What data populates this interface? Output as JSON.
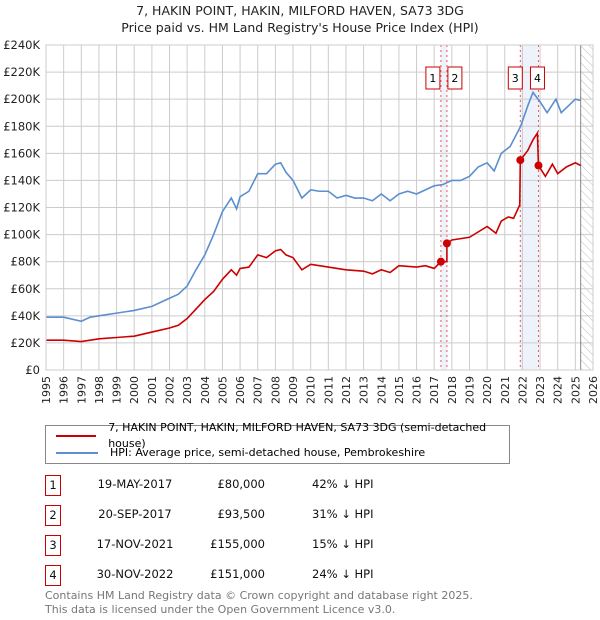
{
  "chart_data": {
    "type": "line",
    "title": "7, HAKIN POINT, HAKIN, MILFORD HAVEN, SA73 3DG",
    "subtitle": "Price paid vs. HM Land Registry's House Price Index (HPI)",
    "xlim": [
      1995,
      2026
    ],
    "ylim": [
      0,
      240000
    ],
    "x_ticks": [
      "1995",
      "1996",
      "1997",
      "1998",
      "1999",
      "2000",
      "2001",
      "2002",
      "2003",
      "2004",
      "2005",
      "2006",
      "2007",
      "2008",
      "2009",
      "2010",
      "2011",
      "2012",
      "2013",
      "2014",
      "2015",
      "2016",
      "2017",
      "2018",
      "2019",
      "2020",
      "2021",
      "2022",
      "2023",
      "2024",
      "2025",
      "2026"
    ],
    "y_ticks": [
      {
        "v": 0,
        "l": "£0"
      },
      {
        "v": 20000,
        "l": "£20K"
      },
      {
        "v": 40000,
        "l": "£40K"
      },
      {
        "v": 60000,
        "l": "£60K"
      },
      {
        "v": 80000,
        "l": "£80K"
      },
      {
        "v": 100000,
        "l": "£100K"
      },
      {
        "v": 120000,
        "l": "£120K"
      },
      {
        "v": 140000,
        "l": "£140K"
      },
      {
        "v": 160000,
        "l": "£160K"
      },
      {
        "v": 180000,
        "l": "£180K"
      },
      {
        "v": 200000,
        "l": "£200K"
      },
      {
        "v": 220000,
        "l": "£220K"
      },
      {
        "v": 240000,
        "l": "£240K"
      }
    ],
    "grid": true,
    "series": [
      {
        "name": "7, HAKIN POINT, HAKIN, MILFORD HAVEN, SA73 3DG (semi-detached house)",
        "color": "#cc0000",
        "points": [
          [
            1995,
            22
          ],
          [
            1996,
            22
          ],
          [
            1997,
            21
          ],
          [
            1998,
            23
          ],
          [
            1999,
            24
          ],
          [
            2000,
            25
          ],
          [
            2001,
            28
          ],
          [
            2002,
            31
          ],
          [
            2002.5,
            33
          ],
          [
            2003,
            38
          ],
          [
            2003.5,
            45
          ],
          [
            2004,
            52
          ],
          [
            2004.5,
            58
          ],
          [
            2005,
            67
          ],
          [
            2005.5,
            74
          ],
          [
            2005.8,
            70
          ],
          [
            2006,
            75
          ],
          [
            2006.5,
            76
          ],
          [
            2007,
            85
          ],
          [
            2007.5,
            83
          ],
          [
            2008,
            88
          ],
          [
            2008.3,
            89
          ],
          [
            2008.6,
            85
          ],
          [
            2009,
            83
          ],
          [
            2009.5,
            74
          ],
          [
            2010,
            78
          ],
          [
            2011,
            76
          ],
          [
            2012,
            74
          ],
          [
            2013,
            73
          ],
          [
            2013.5,
            71
          ],
          [
            2014,
            74
          ],
          [
            2014.5,
            72
          ],
          [
            2015,
            77
          ],
          [
            2016,
            76
          ],
          [
            2016.5,
            77
          ],
          [
            2017,
            75
          ],
          [
            2017.38,
            80
          ],
          [
            2017.72,
            80
          ],
          [
            2017.72,
            93.5
          ],
          [
            2018,
            96
          ],
          [
            2019,
            98
          ],
          [
            2019.5,
            102
          ],
          [
            2020,
            106
          ],
          [
            2020.5,
            101
          ],
          [
            2020.8,
            110
          ],
          [
            2021.2,
            113
          ],
          [
            2021.5,
            112
          ],
          [
            2021.85,
            122
          ],
          [
            2021.88,
            155
          ],
          [
            2022.3,
            162
          ],
          [
            2022.6,
            170
          ],
          [
            2022.85,
            175
          ],
          [
            2022.91,
            151
          ],
          [
            2023.3,
            143
          ],
          [
            2023.7,
            152
          ],
          [
            2024,
            145
          ],
          [
            2024.5,
            150
          ],
          [
            2025,
            153
          ],
          [
            2025.3,
            151
          ]
        ]
      },
      {
        "name": "HPI: Average price, semi-detached house, Pembrokeshire",
        "color": "#5b8fd0",
        "points": [
          [
            1995,
            39
          ],
          [
            1996,
            39
          ],
          [
            1997,
            36
          ],
          [
            1997.5,
            39
          ],
          [
            1998,
            40
          ],
          [
            1999,
            42
          ],
          [
            2000,
            44
          ],
          [
            2001,
            47
          ],
          [
            2002,
            53
          ],
          [
            2002.5,
            56
          ],
          [
            2003,
            62
          ],
          [
            2003.5,
            74
          ],
          [
            2004,
            85
          ],
          [
            2004.5,
            100
          ],
          [
            2005,
            117
          ],
          [
            2005.5,
            127
          ],
          [
            2005.8,
            119
          ],
          [
            2006,
            128
          ],
          [
            2006.5,
            132
          ],
          [
            2007,
            145
          ],
          [
            2007.5,
            145
          ],
          [
            2008,
            152
          ],
          [
            2008.3,
            153
          ],
          [
            2008.6,
            146
          ],
          [
            2009,
            140
          ],
          [
            2009.5,
            127
          ],
          [
            2010,
            133
          ],
          [
            2010.5,
            132
          ],
          [
            2011,
            132
          ],
          [
            2011.5,
            127
          ],
          [
            2012,
            129
          ],
          [
            2012.5,
            127
          ],
          [
            2013,
            127
          ],
          [
            2013.5,
            125
          ],
          [
            2014,
            130
          ],
          [
            2014.5,
            125
          ],
          [
            2015,
            130
          ],
          [
            2015.5,
            132
          ],
          [
            2016,
            130
          ],
          [
            2016.5,
            133
          ],
          [
            2017,
            136
          ],
          [
            2017.5,
            137
          ],
          [
            2018,
            140
          ],
          [
            2018.5,
            140
          ],
          [
            2019,
            143
          ],
          [
            2019.5,
            150
          ],
          [
            2020,
            153
          ],
          [
            2020.4,
            147
          ],
          [
            2020.8,
            160
          ],
          [
            2021.3,
            165
          ],
          [
            2021.9,
            180
          ],
          [
            2022.3,
            195
          ],
          [
            2022.6,
            205
          ],
          [
            2023,
            198
          ],
          [
            2023.4,
            190
          ],
          [
            2023.9,
            200
          ],
          [
            2024.2,
            190
          ],
          [
            2024.6,
            195
          ],
          [
            2025,
            200
          ],
          [
            2025.3,
            199
          ]
        ]
      }
    ],
    "sales": [
      {
        "id": "1",
        "date": "19-MAY-2017",
        "x": 2017.38,
        "price": "£80,000",
        "value": 80000,
        "hpi": "42% ↓ HPI"
      },
      {
        "id": "2",
        "date": "20-SEP-2017",
        "x": 2017.72,
        "price": "£93,500",
        "value": 93500,
        "hpi": "31% ↓ HPI"
      },
      {
        "id": "3",
        "date": "17-NOV-2021",
        "x": 2021.88,
        "price": "£155,000",
        "value": 155000,
        "hpi": "15% ↓ HPI"
      },
      {
        "id": "4",
        "date": "30-NOV-2022",
        "x": 2022.91,
        "price": "£151,000",
        "value": 151000,
        "hpi": "24% ↓ HPI"
      }
    ],
    "forecast_start": 2025.3
  },
  "footer": {
    "line1": "Contains HM Land Registry data © Crown copyright and database right 2025.",
    "line2": "This data is licensed under the Open Government Licence v3.0."
  }
}
